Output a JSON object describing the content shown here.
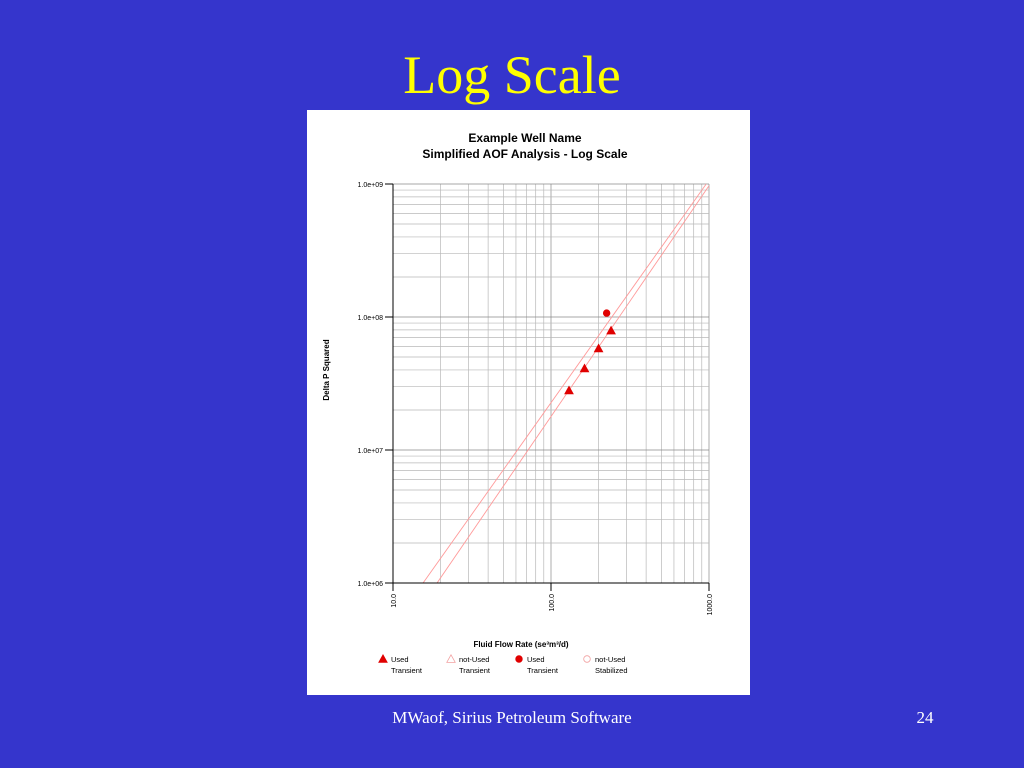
{
  "slide": {
    "title": "Log Scale",
    "footer": "MWaof, Sirius Petroleum Software",
    "page_number": "24"
  },
  "colors": {
    "background": "#3535cc",
    "title": "#ffff00",
    "footer": "#ffffff",
    "series": "#e00000",
    "fit_lines": "#ff9a9a"
  },
  "chart_data": {
    "type": "scatter",
    "title": "Example Well Name",
    "subtitle": "Simplified AOF Analysis - Log Scale",
    "xlabel": "Fluid Flow Rate (se³m³/d)",
    "ylabel": "Delta P Squared",
    "x_scale": "log",
    "y_scale": "log",
    "xlim": [
      10,
      1000
    ],
    "ylim": [
      1000000,
      1000000000
    ],
    "x_tick_labels": [
      {
        "value": 10,
        "label": "10.0"
      },
      {
        "value": 100,
        "label": "100.0"
      },
      {
        "value": 1000,
        "label": "1000.0"
      }
    ],
    "y_tick_labels": [
      {
        "value": 1000000,
        "label": "1.0e+06"
      },
      {
        "value": 10000000,
        "label": "1.0e+07"
      },
      {
        "value": 100000000,
        "label": "1.0e+08"
      },
      {
        "value": 1000000000,
        "label": "1.0e+09"
      }
    ],
    "grid": true,
    "legend_position": "bottom",
    "legend": [
      {
        "line1": "Used",
        "line2": "Transient",
        "marker": "triangle-filled"
      },
      {
        "line1": "not-Used",
        "line2": "Transient",
        "marker": "triangle-open"
      },
      {
        "line1": "Used",
        "line2": "Transient",
        "marker": "circle-filled"
      },
      {
        "line1": "not-Used",
        "line2": "Stabilized",
        "marker": "circle-open"
      }
    ],
    "series": [
      {
        "marker": "triangle-filled",
        "points": [
          {
            "x": 130,
            "y": 28000000
          },
          {
            "x": 163,
            "y": 41000000
          },
          {
            "x": 200,
            "y": 58000000
          },
          {
            "x": 240,
            "y": 79000000
          }
        ]
      },
      {
        "marker": "circle-filled",
        "points": [
          {
            "x": 225,
            "y": 107000000
          }
        ]
      }
    ],
    "fit_lines": [
      {
        "from": {
          "x": 15.5,
          "y": 1000000
        },
        "to": {
          "x": 960,
          "y": 1000000000
        }
      },
      {
        "from": {
          "x": 19,
          "y": 1000000
        },
        "to": {
          "x": 1000,
          "y": 970000000
        }
      }
    ]
  }
}
